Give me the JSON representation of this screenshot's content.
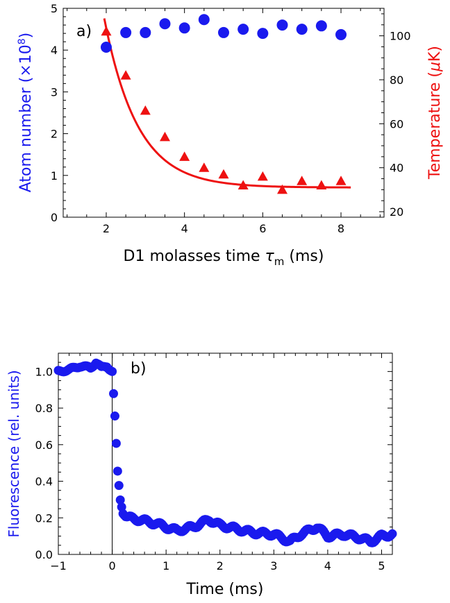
{
  "chart_data": [
    {
      "panel": "a",
      "type": "scatter",
      "panel_label": "a)",
      "xlabel_prefix": "D1 molasses time ",
      "xlabel_symbol": "τ",
      "xlabel_subscript": "m",
      "xlabel_suffix": " (ms)",
      "ylabel_left_prefix": "Atom number (×10",
      "ylabel_left_exponent": "8",
      "ylabel_left_suffix": ")",
      "ylabel_right_prefix": "Temperature (",
      "ylabel_right_symbol": "μ",
      "ylabel_right_suffix": "K)",
      "xlim": [
        0.9,
        9.1
      ],
      "ylim_left": [
        0,
        5
      ],
      "ylim_right": [
        17.5,
        112.5
      ],
      "xticks": [
        "2",
        "4",
        "6",
        "8"
      ],
      "yticks_left": [
        "0",
        "1",
        "2",
        "3",
        "4",
        "5"
      ],
      "yticks_right": [
        "20",
        "40",
        "60",
        "80",
        "100"
      ],
      "colors": {
        "atom": "#1a1aee",
        "temperature": "#ee1111",
        "axes": "#000000"
      },
      "series": [
        {
          "axis": "left",
          "marker": "circle",
          "x": [
            2,
            2.5,
            3,
            3.5,
            4,
            4.5,
            5,
            5.5,
            6,
            6.5,
            7,
            7.5,
            8
          ],
          "values": [
            4.07,
            4.42,
            4.42,
            4.63,
            4.53,
            4.73,
            4.42,
            4.5,
            4.4,
            4.6,
            4.5,
            4.58,
            4.37
          ]
        },
        {
          "axis": "right",
          "marker": "triangle",
          "x": [
            2,
            2.5,
            3,
            3.5,
            4,
            4.5,
            5,
            5.5,
            6,
            6.5,
            7,
            7.5,
            8
          ],
          "values": [
            102,
            82,
            66,
            54,
            45,
            40,
            37,
            32,
            36,
            30,
            34,
            32,
            34
          ]
        }
      ],
      "fit": {
        "axis": "right",
        "x_start": 1.95,
        "x_end": 8.25,
        "model": "31 + 72.5*exp(-(x-2)/0.85)"
      }
    },
    {
      "panel": "b",
      "type": "scatter",
      "panel_label": "b)",
      "xlabel": "Time (ms)",
      "ylabel": "Fluorescence (rel. units)",
      "xlim": [
        -1,
        5.2
      ],
      "ylim": [
        0,
        1.1
      ],
      "xticks": [
        "−1",
        "0",
        "1",
        "2",
        "3",
        "4",
        "5"
      ],
      "yticks": [
        "0.0",
        "0.2",
        "0.4",
        "0.6",
        "0.8",
        "1.0"
      ],
      "vertical_line_x": 0,
      "colors": {
        "series": "#1a1aee",
        "axes": "#000000"
      },
      "series": [
        {
          "marker": "circle",
          "x": [
            -1.0,
            -0.8,
            -0.6,
            -0.4,
            -0.3,
            -0.2,
            -0.1,
            0.0,
            0.05,
            0.1,
            0.15,
            0.2,
            0.25,
            0.3,
            0.5,
            0.8,
            1.0,
            1.2,
            1.5,
            1.8,
            2.0,
            2.3,
            2.6,
            3.0,
            3.3,
            3.5,
            3.8,
            4.0,
            4.3,
            4.6,
            4.8,
            5.0,
            5.2
          ],
          "values": [
            1.0,
            1.01,
            1.03,
            1.02,
            1.05,
            1.02,
            1.03,
            1.0,
            0.75,
            0.45,
            0.3,
            0.23,
            0.21,
            0.2,
            0.19,
            0.17,
            0.15,
            0.13,
            0.15,
            0.19,
            0.16,
            0.14,
            0.12,
            0.11,
            0.07,
            0.11,
            0.15,
            0.1,
            0.11,
            0.09,
            0.07,
            0.1,
            0.11
          ]
        }
      ]
    }
  ]
}
